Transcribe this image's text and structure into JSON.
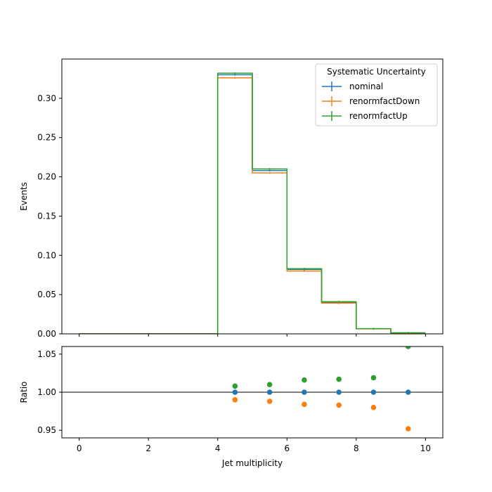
{
  "chart_data": [
    {
      "type": "line",
      "xlabel": "",
      "ylabel": "Events",
      "xlim": [
        -0.5,
        10.5
      ],
      "ylim": [
        0,
        0.35
      ],
      "x_ticks": [
        0,
        2,
        4,
        6,
        8,
        10
      ],
      "y_ticks": [
        0.0,
        0.05,
        0.1,
        0.15,
        0.2,
        0.25,
        0.3
      ],
      "y_tick_labels": [
        "0.00",
        "0.05",
        "0.10",
        "0.15",
        "0.20",
        "0.25",
        "0.30"
      ],
      "bin_edges": [
        0,
        1,
        2,
        3,
        4,
        5,
        6,
        7,
        8,
        9,
        10
      ],
      "legend": {
        "title": "Systematic Uncertainty",
        "placement": "top-right"
      },
      "series": [
        {
          "name": "nominal",
          "color": "#1f77b4",
          "values": [
            0,
            0,
            0,
            0,
            0.33,
            0.208,
            0.082,
            0.04,
            0.0065,
            0.0012
          ]
        },
        {
          "name": "renormfactDown",
          "color": "#ff7f0e",
          "values": [
            0,
            0,
            0,
            0,
            0.326,
            0.205,
            0.08,
            0.039,
            0.0064,
            0.0011
          ]
        },
        {
          "name": "renormfactUp",
          "color": "#2ca02c",
          "values": [
            0,
            0,
            0,
            0,
            0.332,
            0.21,
            0.083,
            0.041,
            0.0066,
            0.0013
          ]
        }
      ]
    },
    {
      "type": "scatter",
      "xlabel": "Jet multiplicity",
      "ylabel": "Ratio",
      "xlim": [
        -0.5,
        10.5
      ],
      "ylim": [
        0.94,
        1.06
      ],
      "x_ticks": [
        0,
        2,
        4,
        6,
        8,
        10
      ],
      "x_tick_labels": [
        "0",
        "2",
        "4",
        "6",
        "8",
        "10"
      ],
      "y_ticks": [
        0.95,
        1.0,
        1.05
      ],
      "y_tick_labels": [
        "0.95",
        "1.00",
        "1.05"
      ],
      "reference_line": 1.0,
      "series": [
        {
          "name": "nominal",
          "color": "#1f77b4",
          "x": [
            4.5,
            5.5,
            6.5,
            7.5,
            8.5,
            9.5
          ],
          "y": [
            1.0,
            1.0,
            1.0,
            1.0,
            1.0,
            1.0
          ]
        },
        {
          "name": "renormfactDown",
          "color": "#ff7f0e",
          "x": [
            4.5,
            5.5,
            6.5,
            7.5,
            8.5,
            9.5
          ],
          "y": [
            0.99,
            0.988,
            0.984,
            0.983,
            0.98,
            0.952
          ]
        },
        {
          "name": "renormfactUp",
          "color": "#2ca02c",
          "x": [
            4.5,
            5.5,
            6.5,
            7.5,
            8.5,
            9.5
          ],
          "y": [
            1.008,
            1.01,
            1.016,
            1.017,
            1.019,
            1.06
          ]
        }
      ]
    }
  ]
}
